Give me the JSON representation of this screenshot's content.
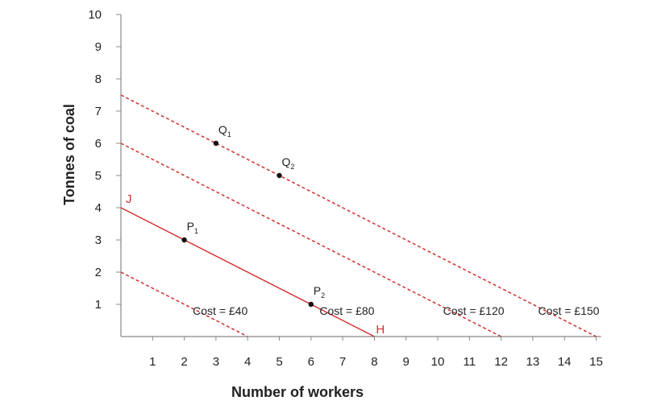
{
  "chart_data": {
    "type": "line",
    "xlabel": "Number of workers",
    "ylabel": "Tonnes of coal",
    "xlim": [
      0,
      15
    ],
    "ylim": [
      0,
      10
    ],
    "x_ticks": [
      1,
      2,
      3,
      4,
      5,
      6,
      7,
      8,
      9,
      10,
      11,
      12,
      13,
      14,
      15
    ],
    "y_ticks": [
      1,
      2,
      3,
      4,
      5,
      6,
      7,
      8,
      9,
      10
    ],
    "grid": false,
    "colors": {
      "line": "#d32f2f",
      "axis": "#888888",
      "point": "#111111"
    },
    "series": [
      {
        "label": "Cost = £40",
        "style": "dashed",
        "points": [
          [
            0,
            2
          ],
          [
            4,
            0
          ]
        ]
      },
      {
        "label": "Cost = £80",
        "style": "solid",
        "points": [
          [
            0,
            4
          ],
          [
            8,
            0
          ]
        ]
      },
      {
        "label": "Cost = £120",
        "style": "dashed",
        "points": [
          [
            0,
            6
          ],
          [
            12,
            0
          ]
        ]
      },
      {
        "label": "Cost = £150",
        "style": "dashed",
        "points": [
          [
            0,
            7.5
          ],
          [
            15,
            0
          ]
        ]
      }
    ],
    "points": [
      {
        "name": "P",
        "sub": "1",
        "x": 2,
        "y": 3
      },
      {
        "name": "P",
        "sub": "2",
        "x": 6,
        "y": 1
      },
      {
        "name": "Q",
        "sub": "1",
        "x": 3,
        "y": 6
      },
      {
        "name": "Q",
        "sub": "2",
        "x": 5,
        "y": 5
      }
    ],
    "endpoint_labels": [
      {
        "text": "J",
        "x": 0,
        "y": 4
      },
      {
        "text": "H",
        "x": 8,
        "y": 0
      }
    ]
  }
}
